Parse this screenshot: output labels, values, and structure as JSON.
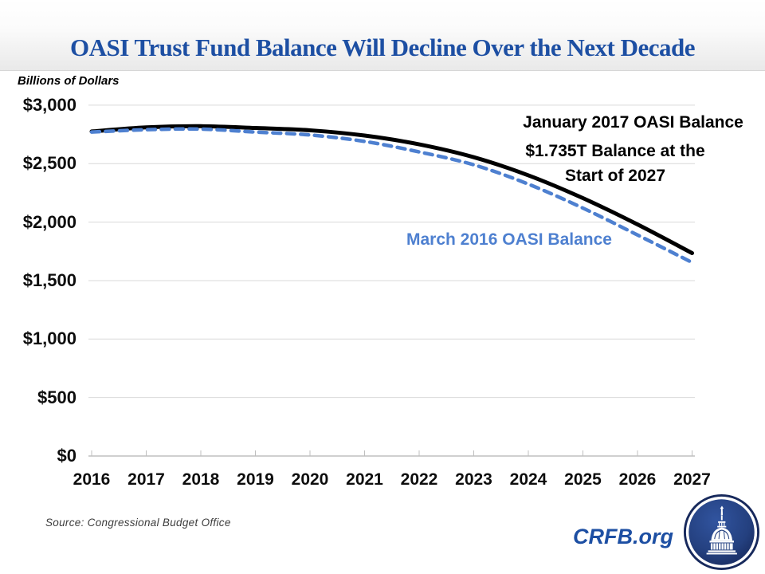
{
  "chart_data": {
    "type": "line",
    "title": "OASI Trust Fund Balance Will Decline Over the Next Decade",
    "units_label": "Billions of Dollars",
    "categories": [
      "2016",
      "2017",
      "2018",
      "2019",
      "2020",
      "2021",
      "2022",
      "2023",
      "2024",
      "2025",
      "2026",
      "2027"
    ],
    "series": [
      {
        "name": "January 2017 OASI Balance",
        "color": "#000000",
        "style": "solid",
        "values": [
          2775,
          2810,
          2820,
          2805,
          2785,
          2740,
          2665,
          2555,
          2400,
          2205,
          1980,
          1735
        ]
      },
      {
        "name": "March 2016 OASI Balance",
        "color": "#4e80d0",
        "style": "dashed",
        "values": [
          2770,
          2790,
          2795,
          2770,
          2745,
          2690,
          2600,
          2490,
          2325,
          2120,
          1890,
          1655
        ]
      }
    ],
    "yticks": [
      {
        "label": "$3,000",
        "value": 3000
      },
      {
        "label": "$2,500",
        "value": 2500
      },
      {
        "label": "$2,000",
        "value": 2000
      },
      {
        "label": "$1,500",
        "value": 1500
      },
      {
        "label": "$1,000",
        "value": 1000
      },
      {
        "label": "$500",
        "value": 500
      },
      {
        "label": "$0",
        "value": 0
      }
    ],
    "ylim": [
      0,
      3000
    ],
    "grid": "horizontal",
    "legend_position": "none",
    "annotations": {
      "jan_label": "January 2017 OASI Balance",
      "balance_note": "$1.735T Balance at the\nStart of 2027",
      "march_label": "March 2016 OASI Balance"
    },
    "colors": {
      "title_blue": "#1d4fa3",
      "line_black": "#000000",
      "line_blue": "#4e80d0",
      "gridline": "#d9d9d9",
      "axis": "#bfbfbf"
    }
  },
  "footer": {
    "source": "Source: Congressional Budget Office",
    "brand": "CRFB.org",
    "logo": "capitol-dome-logo"
  }
}
